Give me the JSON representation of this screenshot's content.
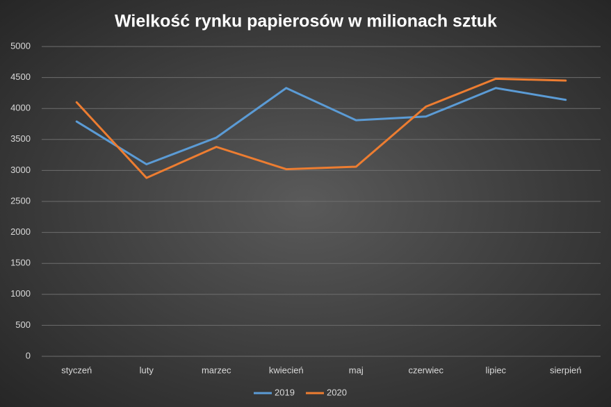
{
  "chart_data": {
    "type": "line",
    "title": "Wielkość rynku papierosów w milionach sztuk",
    "categories": [
      "styczeń",
      "luty",
      "marzec",
      "kwiecień",
      "maj",
      "czerwiec",
      "lipiec",
      "sierpień"
    ],
    "series": [
      {
        "name": "2019",
        "color": "#5b9bd5",
        "values": [
          3790,
          3100,
          3530,
          4330,
          3810,
          3870,
          4330,
          4140
        ]
      },
      {
        "name": "2020",
        "color": "#ed7d31",
        "values": [
          4100,
          2880,
          3380,
          3020,
          3060,
          4030,
          4480,
          4450
        ]
      }
    ],
    "ylim": [
      0,
      5000
    ],
    "yticks": [
      0,
      500,
      1000,
      1500,
      2000,
      2500,
      3000,
      3500,
      4000,
      4500,
      5000
    ],
    "grid": true,
    "legend": "bottom"
  }
}
